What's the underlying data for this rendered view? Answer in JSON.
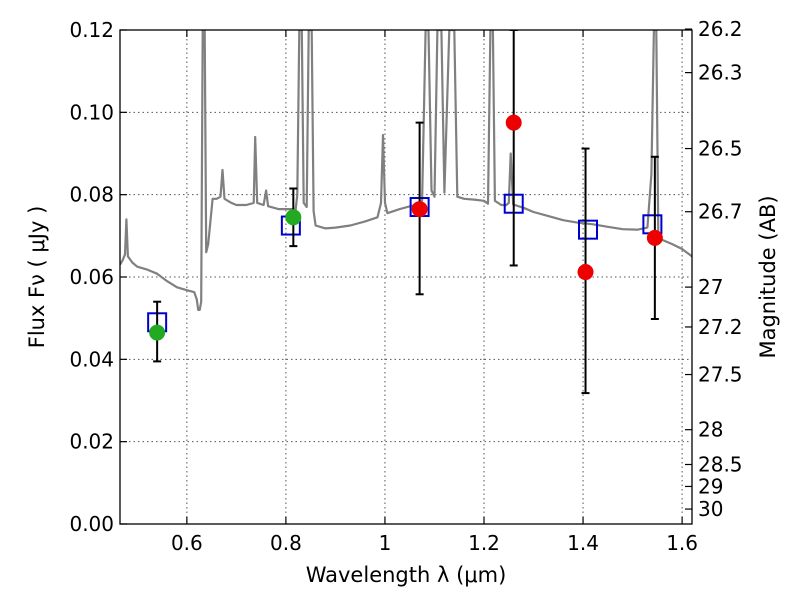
{
  "chart_data": {
    "type": "scatter",
    "title": "",
    "xlabel": "Wavelength  λ (μm)",
    "ylabel": "Flux  Fν  ( μJy )",
    "ylabel_right": "Magnitude (AB)",
    "xlim": [
      0.465,
      1.62
    ],
    "ylim": [
      0.0,
      0.12
    ],
    "grid": true,
    "x_ticks": [
      {
        "value": 0.6,
        "label": "0.6"
      },
      {
        "value": 0.8,
        "label": "0.8"
      },
      {
        "value": 1.0,
        "label": "1"
      },
      {
        "value": 1.2,
        "label": "1.2"
      },
      {
        "value": 1.4,
        "label": "1.4"
      },
      {
        "value": 1.6,
        "label": "1.6"
      }
    ],
    "y_ticks": [
      {
        "value": 0.0,
        "label": "0.00"
      },
      {
        "value": 0.02,
        "label": "0.02"
      },
      {
        "value": 0.04,
        "label": "0.04"
      },
      {
        "value": 0.06,
        "label": "0.06"
      },
      {
        "value": 0.08,
        "label": "0.08"
      },
      {
        "value": 0.1,
        "label": "0.10"
      },
      {
        "value": 0.12,
        "label": "0.12"
      }
    ],
    "right_ticks": [
      {
        "value": 26.2,
        "label": "26.2"
      },
      {
        "value": 26.3,
        "label": "26.3"
      },
      {
        "value": 26.5,
        "label": "26.5"
      },
      {
        "value": 26.7,
        "label": "26.7"
      },
      {
        "value": 27.0,
        "label": "27"
      },
      {
        "value": 27.2,
        "label": "27.2"
      },
      {
        "value": 27.5,
        "label": "27.5"
      },
      {
        "value": 28.0,
        "label": "28"
      },
      {
        "value": 28.5,
        "label": "28.5"
      },
      {
        "value": 29.0,
        "label": "29"
      },
      {
        "value": 30.0,
        "label": "30"
      }
    ],
    "model_color": "#808080",
    "model_spectrum": [
      [
        0.465,
        0.063
      ],
      [
        0.47,
        0.064
      ],
      [
        0.475,
        0.0655
      ],
      [
        0.478,
        0.074
      ],
      [
        0.481,
        0.065
      ],
      [
        0.49,
        0.0635
      ],
      [
        0.5,
        0.0625
      ],
      [
        0.52,
        0.0618
      ],
      [
        0.54,
        0.0608
      ],
      [
        0.56,
        0.059
      ],
      [
        0.58,
        0.0575
      ],
      [
        0.6,
        0.0568
      ],
      [
        0.615,
        0.0563
      ],
      [
        0.62,
        0.0545
      ],
      [
        0.623,
        0.052
      ],
      [
        0.626,
        0.052
      ],
      [
        0.629,
        0.054
      ],
      [
        0.632,
        0.12
      ],
      [
        0.636,
        0.12
      ],
      [
        0.639,
        0.066
      ],
      [
        0.643,
        0.068
      ],
      [
        0.648,
        0.074
      ],
      [
        0.652,
        0.079
      ],
      [
        0.66,
        0.079
      ],
      [
        0.668,
        0.0795
      ],
      [
        0.672,
        0.086
      ],
      [
        0.676,
        0.079
      ],
      [
        0.69,
        0.078
      ],
      [
        0.7,
        0.0775
      ],
      [
        0.72,
        0.0775
      ],
      [
        0.735,
        0.078
      ],
      [
        0.738,
        0.094
      ],
      [
        0.742,
        0.078
      ],
      [
        0.755,
        0.0775
      ],
      [
        0.76,
        0.081
      ],
      [
        0.764,
        0.0772
      ],
      [
        0.785,
        0.0765
      ],
      [
        0.8,
        0.0765
      ],
      [
        0.812,
        0.0765
      ],
      [
        0.818,
        0.0745
      ],
      [
        0.823,
        0.08
      ],
      [
        0.827,
        0.12
      ],
      [
        0.832,
        0.12
      ],
      [
        0.836,
        0.078
      ],
      [
        0.842,
        0.077
      ],
      [
        0.846,
        0.12
      ],
      [
        0.852,
        0.12
      ],
      [
        0.856,
        0.076
      ],
      [
        0.86,
        0.0725
      ],
      [
        0.88,
        0.0718
      ],
      [
        0.9,
        0.072
      ],
      [
        0.93,
        0.0725
      ],
      [
        0.96,
        0.0735
      ],
      [
        0.985,
        0.0745
      ],
      [
        0.992,
        0.078
      ],
      [
        0.996,
        0.0945
      ],
      [
        1.0,
        0.078
      ],
      [
        1.005,
        0.0755
      ],
      [
        1.03,
        0.0765
      ],
      [
        1.06,
        0.0775
      ],
      [
        1.075,
        0.0785
      ],
      [
        1.082,
        0.12
      ],
      [
        1.088,
        0.12
      ],
      [
        1.094,
        0.081
      ],
      [
        1.1,
        0.0795
      ],
      [
        1.106,
        0.12
      ],
      [
        1.114,
        0.12
      ],
      [
        1.12,
        0.0805
      ],
      [
        1.13,
        0.12
      ],
      [
        1.14,
        0.12
      ],
      [
        1.146,
        0.0795
      ],
      [
        1.16,
        0.079
      ],
      [
        1.18,
        0.0788
      ],
      [
        1.2,
        0.0785
      ],
      [
        1.208,
        0.0778
      ],
      [
        1.213,
        0.12
      ],
      [
        1.218,
        0.12
      ],
      [
        1.222,
        0.0785
      ],
      [
        1.235,
        0.0775
      ],
      [
        1.245,
        0.0775
      ],
      [
        1.25,
        0.078
      ],
      [
        1.254,
        0.09
      ],
      [
        1.259,
        0.0776
      ],
      [
        1.28,
        0.0768
      ],
      [
        1.3,
        0.0758
      ],
      [
        1.33,
        0.0748
      ],
      [
        1.36,
        0.0738
      ],
      [
        1.39,
        0.0732
      ],
      [
        1.42,
        0.0728
      ],
      [
        1.45,
        0.0722
      ],
      [
        1.48,
        0.0716
      ],
      [
        1.51,
        0.0715
      ],
      [
        1.53,
        0.072
      ],
      [
        1.538,
        0.085
      ],
      [
        1.543,
        0.12
      ],
      [
        1.548,
        0.12
      ],
      [
        1.552,
        0.07
      ],
      [
        1.56,
        0.069
      ],
      [
        1.58,
        0.068
      ],
      [
        1.6,
        0.0668
      ],
      [
        1.62,
        0.065
      ]
    ],
    "model_fluxes": {
      "color": "#0000cc",
      "points": [
        {
          "x": 0.54,
          "y": 0.049
        },
        {
          "x": 0.81,
          "y": 0.0725
        },
        {
          "x": 1.07,
          "y": 0.077
        },
        {
          "x": 1.26,
          "y": 0.0778
        },
        {
          "x": 1.41,
          "y": 0.0715
        },
        {
          "x": 1.54,
          "y": 0.0728
        }
      ]
    },
    "detections": {
      "color": "#22aa22",
      "points": [
        {
          "x": 0.54,
          "y": 0.0465,
          "err_low": 0.0395,
          "err_high": 0.054
        },
        {
          "x": 0.815,
          "y": 0.0745,
          "err_low": 0.0675,
          "err_high": 0.0815
        }
      ]
    },
    "measurements": {
      "color": "#ee0000",
      "points": [
        {
          "x": 1.07,
          "y": 0.0765,
          "err_low": 0.0558,
          "err_high": 0.0975
        },
        {
          "x": 1.26,
          "y": 0.0975,
          "err_low": 0.0628,
          "err_high": 0.12
        },
        {
          "x": 1.405,
          "y": 0.0612,
          "err_low": 0.0318,
          "err_high": 0.0912
        },
        {
          "x": 1.545,
          "y": 0.0695,
          "err_low": 0.0498,
          "err_high": 0.0892
        }
      ]
    }
  }
}
